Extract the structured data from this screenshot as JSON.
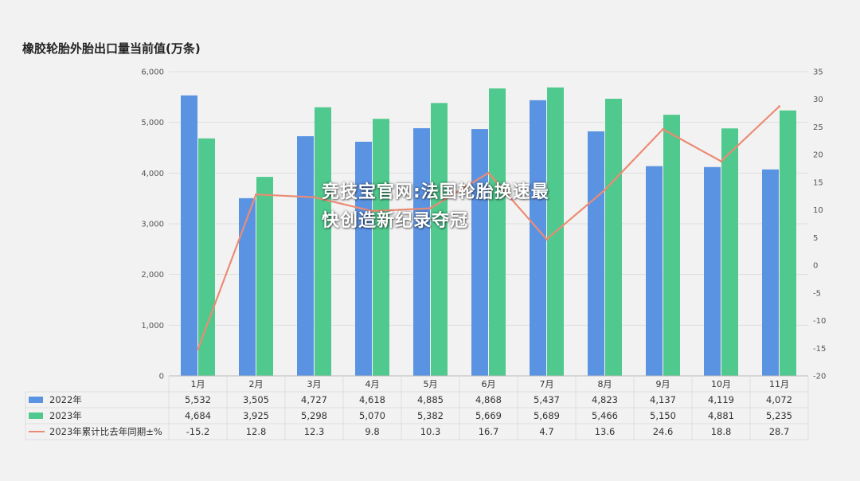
{
  "watermark": "竞技宝官网:法国轮胎换速最快创造新纪录夺冠",
  "colors": {
    "series_2022": "#5b93e3",
    "series_2023": "#4fc98d",
    "series_yoy": "#ec8b74",
    "grid": "#dddddd",
    "axis": "#bbbbbb"
  },
  "chart_data": {
    "type": "bar",
    "title": "橡胶轮胎外胎出口量当前值(万条)",
    "categories": [
      "1月",
      "2月",
      "3月",
      "4月",
      "5月",
      "6月",
      "7月",
      "8月",
      "9月",
      "10月",
      "11月"
    ],
    "ylim": [
      0,
      6000
    ],
    "y_ticks": [
      "0",
      "1,000",
      "2,000",
      "3,000",
      "4,000",
      "5,000",
      "6,000"
    ],
    "y2lim": [
      -20,
      35
    ],
    "y2_ticks": [
      "-20",
      "-15",
      "-10",
      "-5",
      "0",
      "5",
      "10",
      "15",
      "20",
      "25",
      "30",
      "35"
    ],
    "grid": true,
    "legend": "table-bottom",
    "series": [
      {
        "name": "2022年",
        "kind": "bar",
        "axis": "left",
        "values": [
          5532,
          3505,
          4727,
          4618,
          4885,
          4868,
          5437,
          4823,
          4137,
          4119,
          4072
        ],
        "labels": [
          "5,532",
          "3,505",
          "4,727",
          "4,618",
          "4,885",
          "4,868",
          "5,437",
          "4,823",
          "4,137",
          "4,119",
          "4,072"
        ]
      },
      {
        "name": "2023年",
        "kind": "bar",
        "axis": "left",
        "values": [
          4684,
          3925,
          5298,
          5070,
          5382,
          5669,
          5689,
          5466,
          5150,
          4881,
          5235
        ],
        "labels": [
          "4,684",
          "3,925",
          "5,298",
          "5,070",
          "5,382",
          "5,669",
          "5,689",
          "5,466",
          "5,150",
          "4,881",
          "5,235"
        ]
      },
      {
        "name": "2023年累计比去年同期±%",
        "kind": "line",
        "axis": "right",
        "values": [
          -15.2,
          12.8,
          12.3,
          9.8,
          10.3,
          16.7,
          4.7,
          13.6,
          24.6,
          18.8,
          28.7
        ],
        "labels": [
          "-15.2",
          "12.8",
          "12.3",
          "9.8",
          "10.3",
          "16.7",
          "4.7",
          "13.6",
          "24.6",
          "18.8",
          "28.7"
        ]
      }
    ]
  }
}
